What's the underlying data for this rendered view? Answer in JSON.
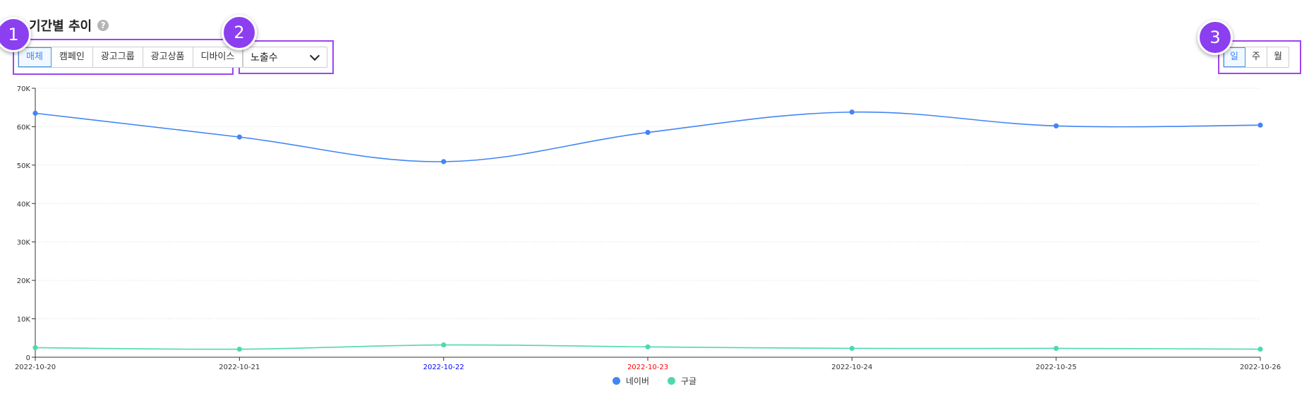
{
  "header": {
    "title": "기간별 추이",
    "help_icon": "question-circle-icon"
  },
  "dimension_tabs": {
    "items": [
      "매체",
      "캠페인",
      "광고그룹",
      "광고상품",
      "디바이스"
    ],
    "active": "매체"
  },
  "metric_select": {
    "value": "노출수"
  },
  "period_tabs": {
    "items": [
      "일",
      "주",
      "월"
    ],
    "active": "일"
  },
  "badges": [
    "1",
    "2",
    "3"
  ],
  "colors": {
    "naver": "#4285f4",
    "google": "#4dd9b0",
    "badge": "#8b3ff0",
    "highlight": "#9e44ef",
    "saturday_label": "#0000ff",
    "sunday_label": "#ff0000"
  },
  "chart_data": {
    "type": "line",
    "x": [
      "2022-10-20",
      "2022-10-21",
      "2022-10-22",
      "2022-10-23",
      "2022-10-24",
      "2022-10-25",
      "2022-10-26"
    ],
    "x_label_colors": [
      "#333333",
      "#333333",
      "#0000ff",
      "#ff0000",
      "#333333",
      "#333333",
      "#333333"
    ],
    "series": [
      {
        "name": "네이버",
        "color": "#4285f4",
        "values": [
          63500,
          57300,
          50900,
          58500,
          63800,
          60200,
          60400
        ]
      },
      {
        "name": "구글",
        "color": "#4dd9b0",
        "values": [
          2500,
          2100,
          3200,
          2700,
          2300,
          2300,
          2100
        ]
      }
    ],
    "ylim": [
      0,
      70000
    ],
    "y_ticks": [
      0,
      10000,
      20000,
      30000,
      40000,
      50000,
      60000,
      70000
    ],
    "y_tick_labels": [
      "0",
      "10K",
      "20K",
      "30K",
      "40K",
      "50K",
      "60K",
      "70K"
    ],
    "grid": true,
    "legend_position": "bottom-center"
  }
}
